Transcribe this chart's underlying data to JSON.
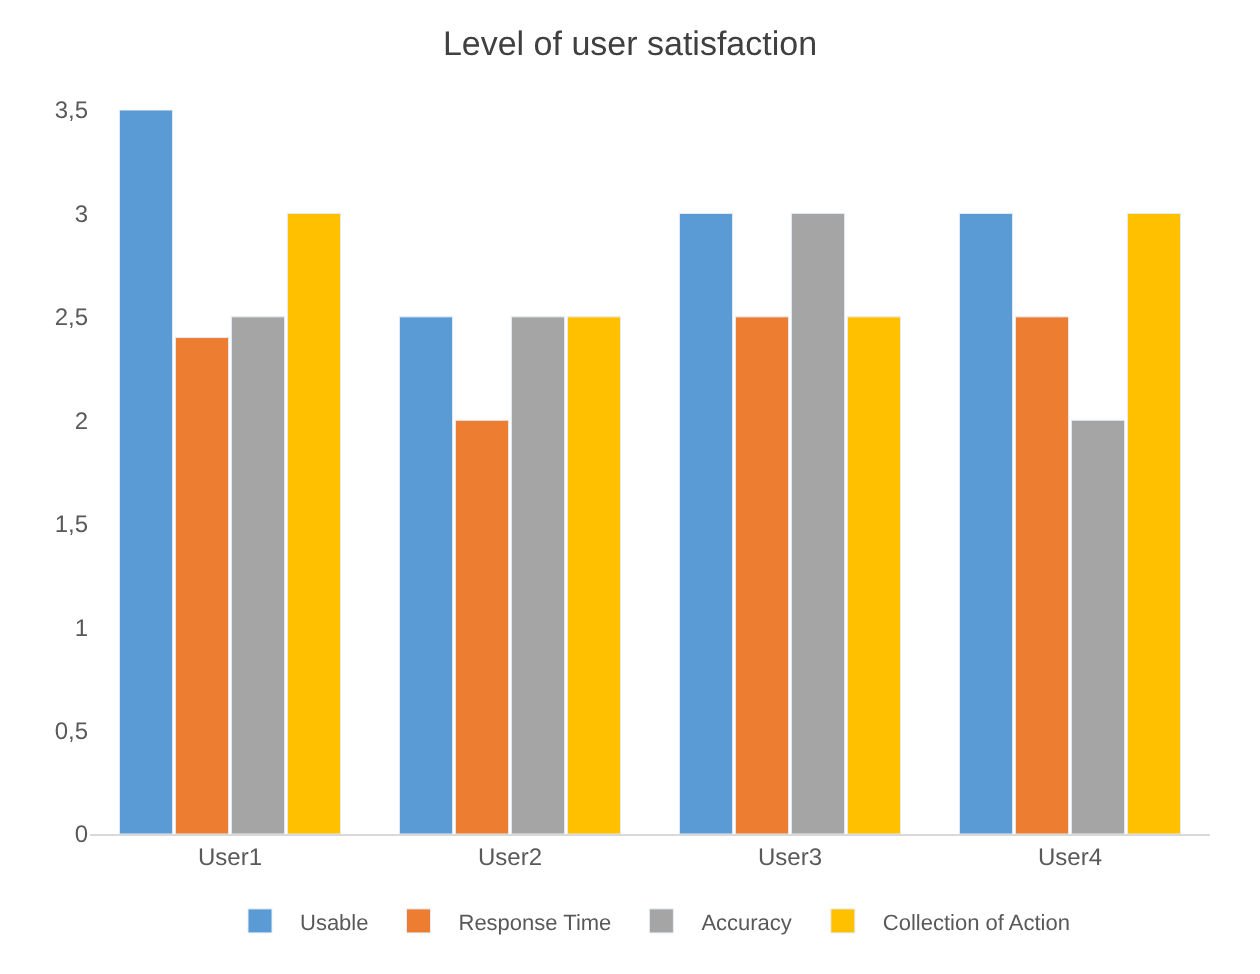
{
  "chart_data": {
    "type": "bar",
    "title": "Level of user satisfaction",
    "categories": [
      "User1",
      "User2",
      "User3",
      "User4"
    ],
    "series": [
      {
        "name": "Usable",
        "color": "#5b9bd5",
        "values": [
          3.5,
          2.5,
          3,
          3
        ]
      },
      {
        "name": "Response Time",
        "color": "#ed7d31",
        "values": [
          2.4,
          2,
          2.5,
          2.5
        ]
      },
      {
        "name": "Accuracy",
        "color": "#a5a5a5",
        "values": [
          2.5,
          2.5,
          3,
          2
        ]
      },
      {
        "name": "Collection of Action",
        "color": "#ffc000",
        "values": [
          3,
          2.5,
          2.5,
          3
        ]
      }
    ],
    "ylim": [
      0,
      3.5
    ],
    "yticks": [
      0,
      {
        "value": 0.5,
        "label": "0,5"
      },
      1,
      {
        "value": 1.5,
        "label": "1,5"
      },
      2,
      {
        "value": 2.5,
        "label": "2,5"
      },
      3,
      {
        "value": 3.5,
        "label": "3,5"
      }
    ],
    "grid": false,
    "legend": "bottom"
  }
}
